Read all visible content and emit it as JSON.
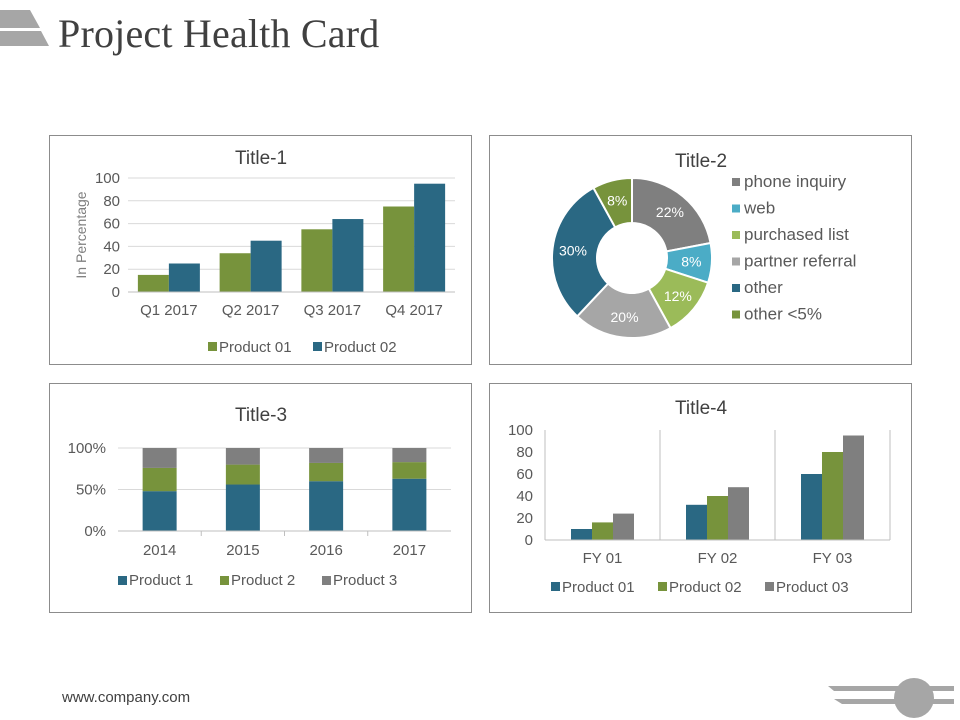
{
  "page": {
    "title": "Project Health Card",
    "footer_url": "www.company.com"
  },
  "colors": {
    "green": "#77933c",
    "teal": "#2a6883",
    "gray": "#7f7f7f",
    "light_blue": "#4bacc6",
    "light_green": "#9bbb59",
    "light_gray": "#a6a6a6",
    "dark_green": "#77933c",
    "grid": "#d9d9d9",
    "axis_text": "#595959"
  },
  "chart_data": [
    {
      "id": "chart1",
      "type": "bar",
      "title": "Title-1",
      "ylabel": "In Percentage",
      "xlabel": "",
      "ylim": [
        0,
        100
      ],
      "yticks": [
        0,
        20,
        40,
        60,
        80,
        100
      ],
      "categories": [
        "Q1 2017",
        "Q2 2017",
        "Q3 2017",
        "Q4 2017"
      ],
      "series": [
        {
          "name": "Product 01",
          "color": "#77933c",
          "values": [
            15,
            34,
            55,
            75
          ]
        },
        {
          "name": "Product 02",
          "color": "#2a6883",
          "values": [
            25,
            45,
            64,
            95
          ]
        }
      ],
      "legend": "bottom",
      "grid": true
    },
    {
      "id": "chart2",
      "type": "pie",
      "subtype": "doughnut",
      "title": "Title-2",
      "legend": "right",
      "slices": [
        {
          "label": "phone inquiry",
          "value": 22,
          "display": "22%",
          "color": "#7f7f7f"
        },
        {
          "label": "web",
          "value": 8,
          "display": "8%",
          "color": "#4bacc6"
        },
        {
          "label": "purchased list",
          "value": 12,
          "display": "12%",
          "color": "#9bbb59"
        },
        {
          "label": "partner referral",
          "value": 20,
          "display": "20%",
          "color": "#a6a6a6"
        },
        {
          "label": "other",
          "value": 30,
          "display": "30%",
          "color": "#2a6883"
        },
        {
          "label": "other <5%",
          "value": 8,
          "display": "8%",
          "color": "#77933c"
        }
      ]
    },
    {
      "id": "chart3",
      "type": "bar",
      "subtype": "stacked-100",
      "title": "Title-3",
      "ylim": [
        0,
        100
      ],
      "yticks": [
        "0%",
        "50%",
        "100%"
      ],
      "categories": [
        "2014",
        "2015",
        "2016",
        "2017"
      ],
      "series": [
        {
          "name": "Product  1",
          "color": "#2a6883",
          "values": [
            48,
            56,
            60,
            63
          ]
        },
        {
          "name": "Product  2",
          "color": "#77933c",
          "values": [
            28,
            24,
            22,
            20
          ]
        },
        {
          "name": "Product  3",
          "color": "#7f7f7f",
          "values": [
            24,
            20,
            18,
            17
          ]
        }
      ],
      "legend": "bottom",
      "grid": true
    },
    {
      "id": "chart4",
      "type": "bar",
      "title": "Title-4",
      "ylim": [
        0,
        100
      ],
      "yticks": [
        0,
        20,
        40,
        60,
        80,
        100
      ],
      "categories": [
        "FY 01",
        "FY 02",
        "FY 03"
      ],
      "series": [
        {
          "name": "Product 01",
          "color": "#2a6883",
          "values": [
            10,
            32,
            60
          ]
        },
        {
          "name": "Product 02",
          "color": "#77933c",
          "values": [
            16,
            40,
            80
          ]
        },
        {
          "name": "Product 03",
          "color": "#7f7f7f",
          "values": [
            24,
            48,
            95
          ]
        }
      ],
      "legend": "bottom",
      "grid": false
    }
  ]
}
